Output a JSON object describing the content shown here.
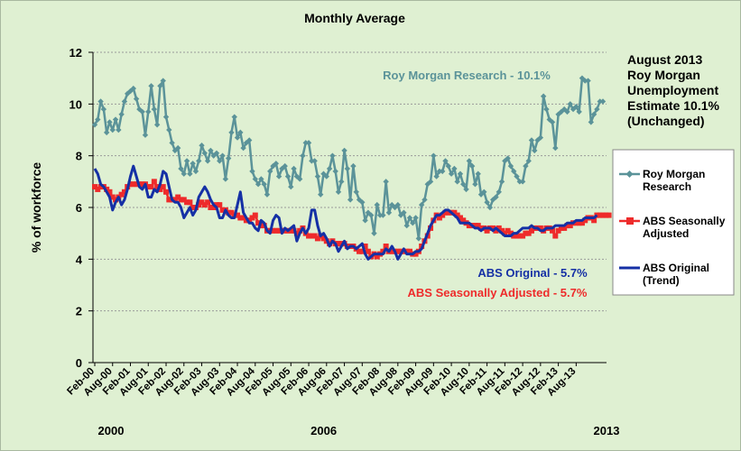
{
  "chart_data": {
    "type": "line",
    "title": "Monthly Average",
    "ylabel": "% of workforce",
    "xlabel": "",
    "ylim": [
      0,
      12
    ],
    "yticks": [
      "0",
      "2",
      "4",
      "6",
      "8",
      "10",
      "12"
    ],
    "grid": true,
    "xticks": [
      "Feb-00",
      "Aug-00",
      "Feb-01",
      "Aug-01",
      "Feb-02",
      "Aug-02",
      "Feb-03",
      "Aug-03",
      "Feb-04",
      "Aug-04",
      "Feb-05",
      "Aug-05",
      "Feb-06",
      "Aug-06",
      "Feb-07",
      "Aug-07",
      "Feb-08",
      "Aug-08",
      "Feb-09",
      "Aug-09",
      "Feb-10",
      "Aug-10",
      "Feb-11",
      "Aug-11",
      "Feb-12",
      "Aug-12",
      "Feb-13",
      "Aug-13"
    ],
    "year_labels": [
      "2000",
      "2006",
      "2013"
    ],
    "annotations": {
      "roy_morgan": "Roy Morgan Research - 10.1%",
      "abs_original": "ABS Original - 5.7%",
      "abs_seasonal": "ABS Seasonally Adjusted - 5.7%"
    },
    "side_note": [
      "August 2013",
      "Roy Morgan",
      "Unemployment",
      "Estimate 10.1%",
      "(Unchanged)"
    ],
    "colors": {
      "background": "#dff0d2",
      "roy_morgan": "#5b9399",
      "abs_seasonal": "#ee2b2b",
      "abs_original": "#1530a5",
      "grid": "#9a9a9a"
    },
    "series": [
      {
        "name": "Roy Morgan Research",
        "legend": [
          "Roy Morgan",
          "Research"
        ],
        "start": "Feb-00",
        "values": [
          9.2,
          9.4,
          10.1,
          9.8,
          8.9,
          9.3,
          9.0,
          9.4,
          9.0,
          9.6,
          10.1,
          10.4,
          10.5,
          10.6,
          10.2,
          9.8,
          9.7,
          8.8,
          9.7,
          10.7,
          9.8,
          9.2,
          10.7,
          10.9,
          9.5,
          9.0,
          8.5,
          8.2,
          8.3,
          7.5,
          7.3,
          7.8,
          7.3,
          7.7,
          7.4,
          7.8,
          8.4,
          8.1,
          7.8,
          8.2,
          8.0,
          8.1,
          7.8,
          8.0,
          7.1,
          7.9,
          8.9,
          9.5,
          8.7,
          8.9,
          8.3,
          8.5,
          8.6,
          7.4,
          7.1,
          6.9,
          7.1,
          6.9,
          6.5,
          7.4,
          7.6,
          7.7,
          7.2,
          7.5,
          7.6,
          7.2,
          6.8,
          7.5,
          7.2,
          7.1,
          8.0,
          8.5,
          8.5,
          7.8,
          7.8,
          7.2,
          6.5,
          7.3,
          7.2,
          7.5,
          8.0,
          7.4,
          6.6,
          7.0,
          8.2,
          7.5,
          6.3,
          7.6,
          6.6,
          6.3,
          6.2,
          5.5,
          5.8,
          5.7,
          5.0,
          6.1,
          5.7,
          5.7,
          7.0,
          5.8,
          6.1,
          6.0,
          6.1,
          5.7,
          5.8,
          5.3,
          5.6,
          5.4,
          5.6,
          4.8,
          6.1,
          6.3,
          6.9,
          7.0,
          8.0,
          7.2,
          7.4,
          7.4,
          7.8,
          7.6,
          7.3,
          7.5,
          7.0,
          7.3,
          6.9,
          6.7,
          7.8,
          7.6,
          6.9,
          7.3,
          6.5,
          6.6,
          6.2,
          6.0,
          6.3,
          6.4,
          6.6,
          7.0,
          7.8,
          7.9,
          7.6,
          7.4,
          7.2,
          7.0,
          7.0,
          7.6,
          7.8,
          8.6,
          8.2,
          8.6,
          8.7,
          10.3,
          9.8,
          9.4,
          9.3,
          8.3,
          9.6,
          9.7,
          9.8,
          9.7,
          10.0,
          9.8,
          9.9,
          9.7,
          11.0,
          10.9,
          10.9,
          9.3,
          9.6,
          9.8,
          10.1,
          10.1
        ]
      },
      {
        "name": "ABS Seasonally Adjusted",
        "legend": [
          "ABS Seasonally",
          "Adjusted"
        ],
        "start": "Feb-00",
        "values": [
          6.8,
          6.7,
          6.8,
          6.8,
          6.7,
          6.6,
          6.4,
          6.3,
          6.4,
          6.5,
          6.6,
          6.8,
          6.9,
          6.9,
          6.9,
          6.9,
          6.9,
          6.9,
          6.8,
          6.8,
          7.0,
          6.8,
          6.7,
          6.8,
          6.6,
          6.3,
          6.3,
          6.3,
          6.4,
          6.3,
          6.3,
          6.2,
          6.2,
          6.0,
          6.0,
          6.1,
          6.2,
          6.1,
          6.2,
          6.0,
          6.0,
          6.1,
          6.1,
          5.9,
          5.9,
          5.8,
          5.8,
          5.7,
          5.7,
          5.6,
          5.6,
          5.5,
          5.5,
          5.6,
          5.7,
          5.4,
          5.3,
          5.3,
          5.1,
          5.1,
          5.1,
          5.1,
          5.1,
          5.1,
          5.1,
          5.1,
          5.1,
          5.1,
          5.0,
          5.1,
          5.2,
          5.0,
          4.9,
          4.9,
          4.9,
          4.8,
          4.9,
          4.8,
          4.7,
          4.6,
          4.7,
          4.6,
          4.6,
          4.6,
          4.6,
          4.5,
          4.5,
          4.5,
          4.4,
          4.3,
          4.3,
          4.5,
          4.3,
          4.1,
          4.2,
          4.1,
          4.2,
          4.3,
          4.5,
          4.3,
          4.3,
          4.3,
          4.3,
          4.3,
          4.3,
          4.3,
          4.3,
          4.2,
          4.2,
          4.3,
          4.5,
          4.7,
          4.9,
          5.2,
          5.5,
          5.7,
          5.6,
          5.7,
          5.8,
          5.8,
          5.8,
          5.8,
          5.7,
          5.6,
          5.5,
          5.4,
          5.3,
          5.3,
          5.3,
          5.3,
          5.2,
          5.2,
          5.1,
          5.2,
          5.2,
          5.1,
          5.2,
          5.1,
          5.0,
          5.1,
          5.0,
          4.9,
          4.9,
          4.9,
          4.9,
          5.0,
          5.0,
          5.1,
          5.2,
          5.2,
          5.2,
          5.1,
          5.2,
          5.2,
          5.1,
          4.9,
          5.1,
          5.2,
          5.2,
          5.3,
          5.3,
          5.4,
          5.4,
          5.4,
          5.4,
          5.5,
          5.6,
          5.6,
          5.5,
          5.7,
          5.7,
          5.7,
          5.7,
          5.7
        ]
      },
      {
        "name": "ABS Original",
        "legend": [
          "ABS Original",
          "(Trend)"
        ],
        "start": "Feb-00",
        "values": [
          7.5,
          7.3,
          6.9,
          6.8,
          6.6,
          6.4,
          5.9,
          6.2,
          6.4,
          6.1,
          6.3,
          6.7,
          7.2,
          7.6,
          7.2,
          6.8,
          6.7,
          6.9,
          6.4,
          6.4,
          6.7,
          6.6,
          6.9,
          7.4,
          7.3,
          6.8,
          6.3,
          6.2,
          6.2,
          6.0,
          5.6,
          5.8,
          6.0,
          5.7,
          5.9,
          6.4,
          6.6,
          6.8,
          6.6,
          6.3,
          6.1,
          6.0,
          5.6,
          5.6,
          5.9,
          5.7,
          5.6,
          5.6,
          6.1,
          6.6,
          5.8,
          5.6,
          5.4,
          5.4,
          5.2,
          5.1,
          5.5,
          5.4,
          5.1,
          5.0,
          5.5,
          5.7,
          5.6,
          5.0,
          5.2,
          5.1,
          5.2,
          5.3,
          4.7,
          5.0,
          5.2,
          5.0,
          5.2,
          5.9,
          5.9,
          5.3,
          4.9,
          5.0,
          4.8,
          4.5,
          4.7,
          4.6,
          4.3,
          4.5,
          4.7,
          4.4,
          4.5,
          4.5,
          4.4,
          4.5,
          4.6,
          4.2,
          4.0,
          4.1,
          4.2,
          4.2,
          4.2,
          4.2,
          4.4,
          4.3,
          4.5,
          4.3,
          4.0,
          4.2,
          4.4,
          4.2,
          4.2,
          4.2,
          4.3,
          4.3,
          4.4,
          4.7,
          5.0,
          5.3,
          5.5,
          5.7,
          5.7,
          5.8,
          5.9,
          5.9,
          5.8,
          5.7,
          5.6,
          5.4,
          5.4,
          5.4,
          5.4,
          5.3,
          5.2,
          5.2,
          5.1,
          5.2,
          5.2,
          5.2,
          5.1,
          5.2,
          5.1,
          5.0,
          4.9,
          4.9,
          4.9,
          5.0,
          5.0,
          5.1,
          5.2,
          5.2,
          5.2,
          5.3,
          5.2,
          5.2,
          5.1,
          5.1,
          5.2,
          5.2,
          5.2,
          5.3,
          5.3,
          5.3,
          5.3,
          5.4,
          5.4,
          5.4,
          5.5,
          5.5,
          5.5,
          5.6,
          5.6,
          5.6,
          5.6,
          5.7
        ]
      }
    ]
  }
}
